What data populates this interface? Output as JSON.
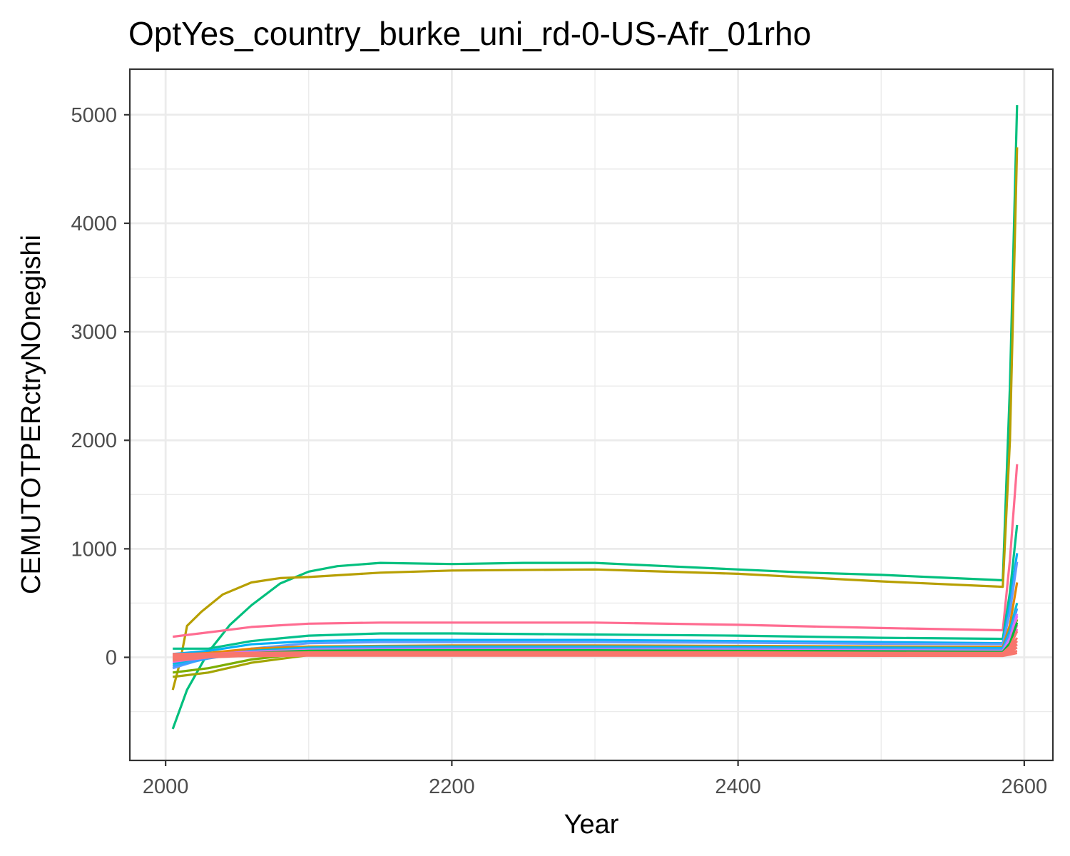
{
  "chart_data": {
    "type": "line",
    "title": "OptYes_country_burke_uni_rd-0-US-Afr_01rho",
    "xlabel": "Year",
    "ylabel": "CEMUTOTPERctryNOnegishi",
    "xlim": [
      1975,
      2620
    ],
    "ylim": [
      -950,
      5420
    ],
    "x_ticks": [
      2000,
      2200,
      2400,
      2600
    ],
    "y_ticks": [
      0,
      1000,
      2000,
      3000,
      4000,
      5000
    ],
    "grid": true,
    "legend": "none",
    "background": "#ffffff",
    "panel_border": "#333333",
    "grid_color": "#ebebeb",
    "series": [
      {
        "color": "#00BF7D",
        "x": [
          2005,
          2015,
          2030,
          2045,
          2060,
          2080,
          2100,
          2120,
          2150,
          2200,
          2250,
          2300,
          2350,
          2400,
          2450,
          2500,
          2550,
          2585,
          2590,
          2595
        ],
        "y": [
          -660,
          -300,
          50,
          300,
          480,
          680,
          790,
          840,
          870,
          860,
          870,
          870,
          840,
          810,
          780,
          760,
          730,
          710,
          2500,
          5090
        ]
      },
      {
        "color": "#B79F00",
        "x": [
          2005,
          2010,
          2015,
          2025,
          2040,
          2060,
          2080,
          2100,
          2150,
          2200,
          2300,
          2400,
          2500,
          2585,
          2590,
          2595
        ],
        "y": [
          -300,
          -50,
          290,
          420,
          580,
          690,
          730,
          740,
          780,
          800,
          810,
          770,
          700,
          650,
          2000,
          4700
        ]
      },
      {
        "color": "#FF6C91",
        "x": [
          2005,
          2030,
          2060,
          2100,
          2150,
          2200,
          2300,
          2400,
          2500,
          2585,
          2590,
          2595
        ],
        "y": [
          190,
          230,
          280,
          310,
          320,
          320,
          320,
          300,
          270,
          250,
          900,
          1780
        ]
      },
      {
        "color": "#00C08B",
        "x": [
          2005,
          2030,
          2060,
          2100,
          2150,
          2200,
          2300,
          2400,
          2500,
          2585,
          2590,
          2595
        ],
        "y": [
          80,
          80,
          150,
          200,
          220,
          220,
          210,
          200,
          180,
          170,
          600,
          1220
        ]
      },
      {
        "color": "#00B0F6",
        "x": [
          2005,
          2030,
          2060,
          2100,
          2150,
          2200,
          2300,
          2400,
          2500,
          2585,
          2590,
          2595
        ],
        "y": [
          30,
          60,
          120,
          150,
          160,
          160,
          160,
          150,
          140,
          130,
          500,
          960
        ]
      },
      {
        "color": "#619CFF",
        "x": [
          2005,
          2030,
          2060,
          2100,
          2150,
          2200,
          2300,
          2400,
          2500,
          2585,
          2590,
          2595
        ],
        "y": [
          -100,
          0,
          80,
          130,
          140,
          140,
          140,
          135,
          125,
          120,
          420,
          880
        ]
      },
      {
        "color": "#A3A500",
        "x": [
          2005,
          2030,
          2060,
          2100,
          2150,
          2200,
          2300,
          2400,
          2500,
          2585,
          2590,
          2595
        ],
        "y": [
          -180,
          -140,
          -50,
          20,
          40,
          50,
          50,
          45,
          40,
          35,
          120,
          300
        ]
      },
      {
        "color": "#7CAE00",
        "x": [
          2005,
          2030,
          2060,
          2100,
          2150,
          2200,
          2300,
          2400,
          2500,
          2585,
          2590,
          2595
        ],
        "y": [
          -140,
          -100,
          -20,
          40,
          60,
          65,
          65,
          60,
          55,
          50,
          150,
          350
        ]
      },
      {
        "color": "#E58700",
        "x": [
          2005,
          2030,
          2060,
          2100,
          2150,
          2200,
          2300,
          2400,
          2500,
          2585,
          2590,
          2595
        ],
        "y": [
          20,
          40,
          80,
          100,
          105,
          110,
          110,
          105,
          100,
          95,
          300,
          690
        ]
      },
      {
        "color": "#00BCD8",
        "x": [
          2005,
          2030,
          2060,
          2100,
          2150,
          2200,
          2300,
          2400,
          2500,
          2585,
          2590,
          2595
        ],
        "y": [
          -60,
          0,
          60,
          90,
          100,
          100,
          100,
          95,
          90,
          85,
          250,
          500
        ]
      },
      {
        "color": "#35A2FF",
        "x": [
          2005,
          2030,
          2060,
          2100,
          2150,
          2200,
          2300,
          2400,
          2500,
          2585,
          2590,
          2595
        ],
        "y": [
          -80,
          -10,
          50,
          80,
          90,
          90,
          90,
          85,
          80,
          75,
          220,
          450
        ]
      },
      {
        "color": "#C77CFF",
        "x": [
          2005,
          2030,
          2060,
          2100,
          2150,
          2200,
          2300,
          2400,
          2500,
          2585,
          2590,
          2595
        ],
        "y": [
          -20,
          20,
          50,
          70,
          75,
          75,
          75,
          70,
          65,
          60,
          180,
          400
        ]
      },
      {
        "color": "#E76BF3",
        "x": [
          2005,
          2030,
          2060,
          2100,
          2150,
          2200,
          2300,
          2400,
          2500,
          2585,
          2590,
          2595
        ],
        "y": [
          10,
          30,
          50,
          60,
          65,
          65,
          65,
          60,
          55,
          50,
          150,
          380
        ]
      },
      {
        "color": "#FA62DB",
        "x": [
          2005,
          2030,
          2060,
          2100,
          2150,
          2200,
          2300,
          2400,
          2500,
          2585,
          2590,
          2595
        ],
        "y": [
          -40,
          0,
          30,
          50,
          55,
          55,
          55,
          50,
          45,
          40,
          120,
          300
        ]
      },
      {
        "color": "#FF62BC",
        "x": [
          2005,
          2030,
          2060,
          2100,
          2150,
          2200,
          2300,
          2400,
          2500,
          2585,
          2590,
          2595
        ],
        "y": [
          0,
          20,
          40,
          50,
          52,
          52,
          52,
          50,
          45,
          42,
          110,
          260
        ]
      },
      {
        "color": "#00BA38",
        "x": [
          2005,
          2030,
          2060,
          2100,
          2150,
          2200,
          2300,
          2400,
          2500,
          2585,
          2590,
          2595
        ],
        "y": [
          -20,
          10,
          40,
          60,
          65,
          65,
          65,
          60,
          55,
          50,
          130,
          320
        ]
      },
      {
        "color": "#F8766D",
        "x": [
          2005,
          2030,
          2060,
          2100,
          2150,
          2200,
          2300,
          2400,
          2500,
          2585,
          2590,
          2595
        ],
        "y": [
          10,
          25,
          40,
          45,
          48,
          48,
          48,
          45,
          42,
          40,
          100,
          240
        ]
      },
      {
        "color": "#F8766D",
        "x": [
          2005,
          2030,
          2060,
          2100,
          2150,
          2200,
          2300,
          2400,
          2500,
          2585,
          2590,
          2595
        ],
        "y": [
          -10,
          10,
          25,
          35,
          38,
          38,
          38,
          35,
          32,
          30,
          80,
          180
        ]
      },
      {
        "color": "#F8766D",
        "x": [
          2005,
          2030,
          2060,
          2100,
          2150,
          2200,
          2300,
          2400,
          2500,
          2585,
          2590,
          2595
        ],
        "y": [
          20,
          30,
          35,
          40,
          42,
          42,
          42,
          40,
          38,
          35,
          70,
          150
        ]
      },
      {
        "color": "#F8766D",
        "x": [
          2005,
          2030,
          2060,
          2100,
          2150,
          2200,
          2300,
          2400,
          2500,
          2585,
          2590,
          2595
        ],
        "y": [
          0,
          15,
          25,
          30,
          32,
          32,
          32,
          30,
          28,
          26,
          60,
          120
        ]
      },
      {
        "color": "#F8766D",
        "x": [
          2005,
          2030,
          2060,
          2100,
          2150,
          2200,
          2300,
          2400,
          2500,
          2585,
          2590,
          2595
        ],
        "y": [
          30,
          35,
          40,
          42,
          43,
          43,
          43,
          42,
          40,
          38,
          50,
          90
        ]
      },
      {
        "color": "#F8766D",
        "x": [
          2005,
          2030,
          2060,
          2100,
          2150,
          2200,
          2300,
          2400,
          2500,
          2585,
          2590,
          2595
        ],
        "y": [
          -30,
          0,
          15,
          20,
          22,
          22,
          22,
          20,
          18,
          16,
          40,
          60
        ]
      },
      {
        "color": "#F8766D",
        "x": [
          2005,
          2030,
          2060,
          2100,
          2150,
          2200,
          2300,
          2400,
          2500,
          2585,
          2590,
          2595
        ],
        "y": [
          5,
          10,
          12,
          15,
          16,
          16,
          16,
          15,
          14,
          13,
          25,
          40
        ]
      }
    ]
  }
}
